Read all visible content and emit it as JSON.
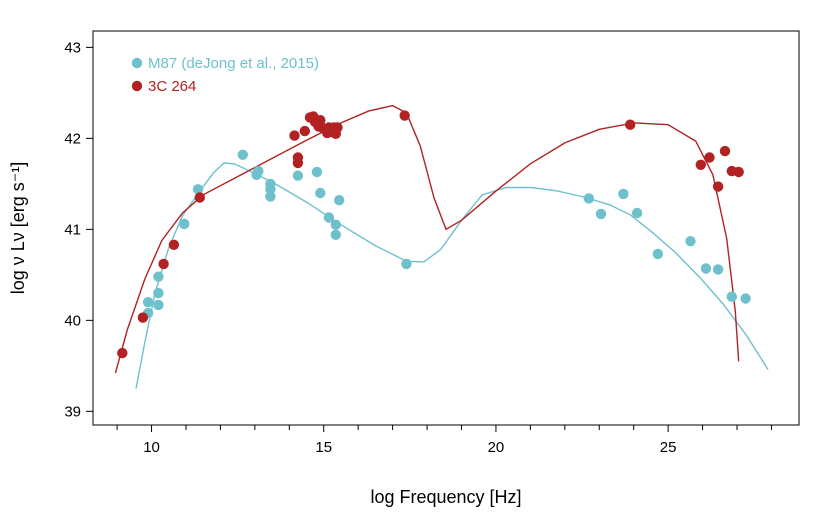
{
  "chart_data": {
    "type": "scatter",
    "xlabel": "log Frequency [Hz]",
    "ylabel": "log ν Lν [erg s⁻¹]",
    "xlim": [
      8.3,
      28.8
    ],
    "ylim": [
      38.85,
      43.18
    ],
    "x_ticks": [
      10,
      15,
      20,
      25
    ],
    "y_ticks": [
      39,
      40,
      41,
      42,
      43
    ],
    "minor_x_ticks": [
      9,
      11,
      12,
      13,
      14,
      16,
      17,
      18,
      19,
      21,
      22,
      23,
      24,
      26,
      27,
      28
    ],
    "legend_position": "top-left",
    "series": [
      {
        "name": "M87 (deJong et al., 2015)",
        "color": "#6EC1CC",
        "points": [
          [
            9.9,
            40.08
          ],
          [
            9.9,
            40.2
          ],
          [
            10.2,
            40.17
          ],
          [
            10.2,
            40.3
          ],
          [
            10.2,
            40.48
          ],
          [
            10.95,
            41.06
          ],
          [
            11.35,
            41.44
          ],
          [
            12.65,
            41.82
          ],
          [
            13.05,
            41.6
          ],
          [
            13.1,
            41.64
          ],
          [
            13.45,
            41.36
          ],
          [
            13.45,
            41.44
          ],
          [
            13.45,
            41.5
          ],
          [
            14.25,
            41.59
          ],
          [
            14.8,
            41.63
          ],
          [
            14.9,
            41.4
          ],
          [
            15.15,
            41.13
          ],
          [
            15.35,
            41.05
          ],
          [
            15.35,
            40.94
          ],
          [
            15.45,
            41.32
          ],
          [
            17.4,
            40.62
          ],
          [
            22.7,
            41.34
          ],
          [
            23.05,
            41.17
          ],
          [
            23.7,
            41.39
          ],
          [
            24.1,
            41.18
          ],
          [
            24.7,
            40.73
          ],
          [
            25.65,
            40.87
          ],
          [
            26.1,
            40.57
          ],
          [
            26.45,
            40.56
          ],
          [
            26.85,
            40.26
          ],
          [
            27.25,
            40.24
          ]
        ],
        "curve": [
          [
            9.55,
            39.25
          ],
          [
            9.8,
            39.75
          ],
          [
            10.1,
            40.3
          ],
          [
            10.5,
            40.8
          ],
          [
            10.9,
            41.15
          ],
          [
            11.4,
            41.42
          ],
          [
            11.8,
            41.62
          ],
          [
            12.1,
            41.73
          ],
          [
            12.4,
            41.72
          ],
          [
            12.8,
            41.65
          ],
          [
            13.5,
            41.52
          ],
          [
            14.5,
            41.3
          ],
          [
            15.5,
            41.05
          ],
          [
            16.5,
            40.82
          ],
          [
            17.4,
            40.65
          ],
          [
            17.9,
            40.64
          ],
          [
            18.4,
            40.78
          ],
          [
            19.0,
            41.1
          ],
          [
            19.6,
            41.38
          ],
          [
            20.3,
            41.46
          ],
          [
            21.0,
            41.46
          ],
          [
            21.8,
            41.42
          ],
          [
            22.6,
            41.35
          ],
          [
            23.3,
            41.27
          ],
          [
            23.9,
            41.16
          ],
          [
            24.5,
            40.98
          ],
          [
            25.2,
            40.75
          ],
          [
            25.9,
            40.48
          ],
          [
            26.6,
            40.18
          ],
          [
            27.3,
            39.82
          ],
          [
            27.9,
            39.46
          ]
        ]
      },
      {
        "name": "3C 264",
        "color": "#B22222",
        "points": [
          [
            9.15,
            39.64
          ],
          [
            9.75,
            40.03
          ],
          [
            10.35,
            40.62
          ],
          [
            10.65,
            40.83
          ],
          [
            11.4,
            41.35
          ],
          [
            14.15,
            42.03
          ],
          [
            14.25,
            41.73
          ],
          [
            14.25,
            41.79
          ],
          [
            14.45,
            42.08
          ],
          [
            14.6,
            42.23
          ],
          [
            14.7,
            42.24
          ],
          [
            14.75,
            42.18
          ],
          [
            14.85,
            42.13
          ],
          [
            14.9,
            42.2
          ],
          [
            14.95,
            42.12
          ],
          [
            15.1,
            42.06
          ],
          [
            15.15,
            42.12
          ],
          [
            15.2,
            42.07
          ],
          [
            15.3,
            42.12
          ],
          [
            15.35,
            42.05
          ],
          [
            15.4,
            42.12
          ],
          [
            17.35,
            42.25
          ],
          [
            23.9,
            42.15
          ],
          [
            25.95,
            41.71
          ],
          [
            26.2,
            41.79
          ],
          [
            26.45,
            41.47
          ],
          [
            26.65,
            41.86
          ],
          [
            26.85,
            41.64
          ],
          [
            27.05,
            41.63
          ]
        ],
        "curve": [
          [
            8.95,
            39.42
          ],
          [
            9.3,
            39.9
          ],
          [
            9.8,
            40.45
          ],
          [
            10.3,
            40.88
          ],
          [
            10.9,
            41.18
          ],
          [
            11.5,
            41.38
          ],
          [
            12.5,
            41.58
          ],
          [
            13.5,
            41.78
          ],
          [
            14.5,
            41.98
          ],
          [
            15.5,
            42.17
          ],
          [
            16.3,
            42.3
          ],
          [
            17.0,
            42.36
          ],
          [
            17.4,
            42.28
          ],
          [
            17.8,
            41.92
          ],
          [
            18.2,
            41.35
          ],
          [
            18.55,
            41.0
          ],
          [
            19.0,
            41.1
          ],
          [
            20.0,
            41.42
          ],
          [
            21.0,
            41.72
          ],
          [
            22.0,
            41.95
          ],
          [
            23.0,
            42.1
          ],
          [
            24.0,
            42.17
          ],
          [
            25.0,
            42.15
          ],
          [
            25.8,
            41.97
          ],
          [
            26.3,
            41.6
          ],
          [
            26.7,
            40.9
          ],
          [
            26.95,
            40.1
          ],
          [
            27.05,
            39.55
          ]
        ]
      }
    ]
  }
}
